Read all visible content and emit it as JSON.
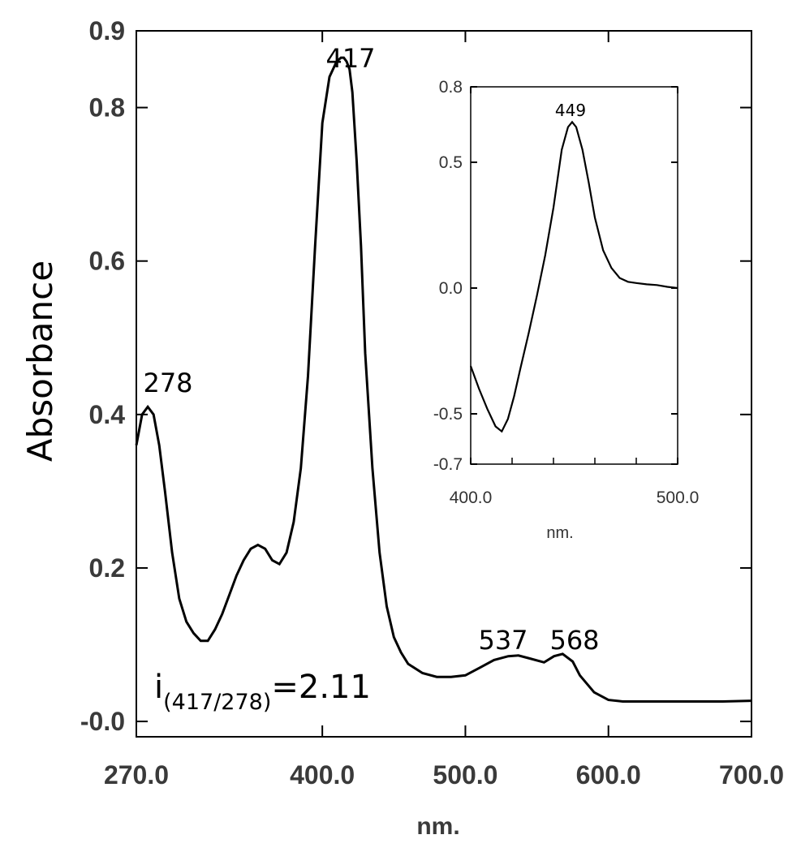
{
  "chart_data": [
    {
      "type": "line",
      "title": "",
      "xlabel": "nm.",
      "ylabel": "Absorbance",
      "xlim": [
        270,
        700
      ],
      "ylim": [
        -0.02,
        0.9
      ],
      "x_ticks": [
        270,
        400,
        500,
        600,
        700
      ],
      "x_tick_labels": [
        "270.0",
        "400.0",
        "500.0",
        "600.0",
        "700.0"
      ],
      "y_ticks": [
        0.0,
        0.2,
        0.4,
        0.6,
        0.8,
        0.9
      ],
      "y_tick_labels": [
        "-0.0",
        "0.2",
        "0.4",
        "0.6",
        "0.8",
        "0.9"
      ],
      "grid": false,
      "series": [
        {
          "x": [
            270,
            274,
            278,
            282,
            286,
            290,
            295,
            300,
            305,
            310,
            315,
            320,
            325,
            330,
            335,
            340,
            345,
            350,
            355,
            360,
            365,
            370,
            375,
            380,
            385,
            390,
            395,
            400,
            405,
            410,
            413,
            415,
            417,
            419,
            421,
            424,
            427,
            430,
            435,
            440,
            445,
            450,
            455,
            460,
            470,
            480,
            490,
            500,
            510,
            520,
            530,
            537,
            545,
            555,
            562,
            568,
            575,
            580,
            590,
            600,
            610,
            620,
            650,
            680,
            700
          ],
          "y": [
            0.36,
            0.4,
            0.41,
            0.4,
            0.36,
            0.3,
            0.22,
            0.16,
            0.13,
            0.115,
            0.105,
            0.105,
            0.12,
            0.14,
            0.165,
            0.19,
            0.21,
            0.225,
            0.23,
            0.225,
            0.21,
            0.205,
            0.22,
            0.26,
            0.33,
            0.45,
            0.62,
            0.78,
            0.84,
            0.86,
            0.865,
            0.865,
            0.86,
            0.85,
            0.82,
            0.73,
            0.62,
            0.48,
            0.33,
            0.22,
            0.15,
            0.11,
            0.09,
            0.075,
            0.063,
            0.058,
            0.058,
            0.06,
            0.07,
            0.08,
            0.085,
            0.086,
            0.082,
            0.077,
            0.085,
            0.088,
            0.078,
            0.06,
            0.038,
            0.028,
            0.026,
            0.026,
            0.026,
            0.026,
            0.027
          ]
        }
      ],
      "annotations": {
        "peak_278": "278",
        "peak_417": "417",
        "peak_537": "537",
        "peak_568": "568",
        "ratio_main": "i",
        "ratio_sub": "(417/278)",
        "ratio_value": "=2.11"
      }
    },
    {
      "type": "line",
      "title": "",
      "xlabel": "nm.",
      "ylabel": "",
      "xlim": [
        400,
        500
      ],
      "ylim": [
        -0.7,
        0.8
      ],
      "x_ticks": [
        400,
        500
      ],
      "x_tick_labels": [
        "400.0",
        "500.0"
      ],
      "y_ticks": [
        -0.7,
        -0.5,
        0.0,
        0.5,
        0.8
      ],
      "y_tick_labels": [
        "-0.7",
        "-0.5",
        "0.0",
        "0.5",
        "0.8"
      ],
      "grid": false,
      "series": [
        {
          "x": [
            400,
            404,
            408,
            412,
            415,
            418,
            421,
            424,
            428,
            432,
            436,
            440,
            444,
            447,
            449,
            451,
            454,
            457,
            460,
            464,
            468,
            472,
            476,
            480,
            485,
            490,
            495,
            500
          ],
          "y": [
            -0.31,
            -0.4,
            -0.48,
            -0.55,
            -0.57,
            -0.52,
            -0.43,
            -0.32,
            -0.18,
            -0.03,
            0.13,
            0.32,
            0.55,
            0.64,
            0.66,
            0.64,
            0.55,
            0.42,
            0.28,
            0.15,
            0.08,
            0.04,
            0.025,
            0.02,
            0.015,
            0.012,
            0.005,
            0.0
          ]
        }
      ],
      "annotations": {
        "peak_449": "449"
      }
    }
  ]
}
